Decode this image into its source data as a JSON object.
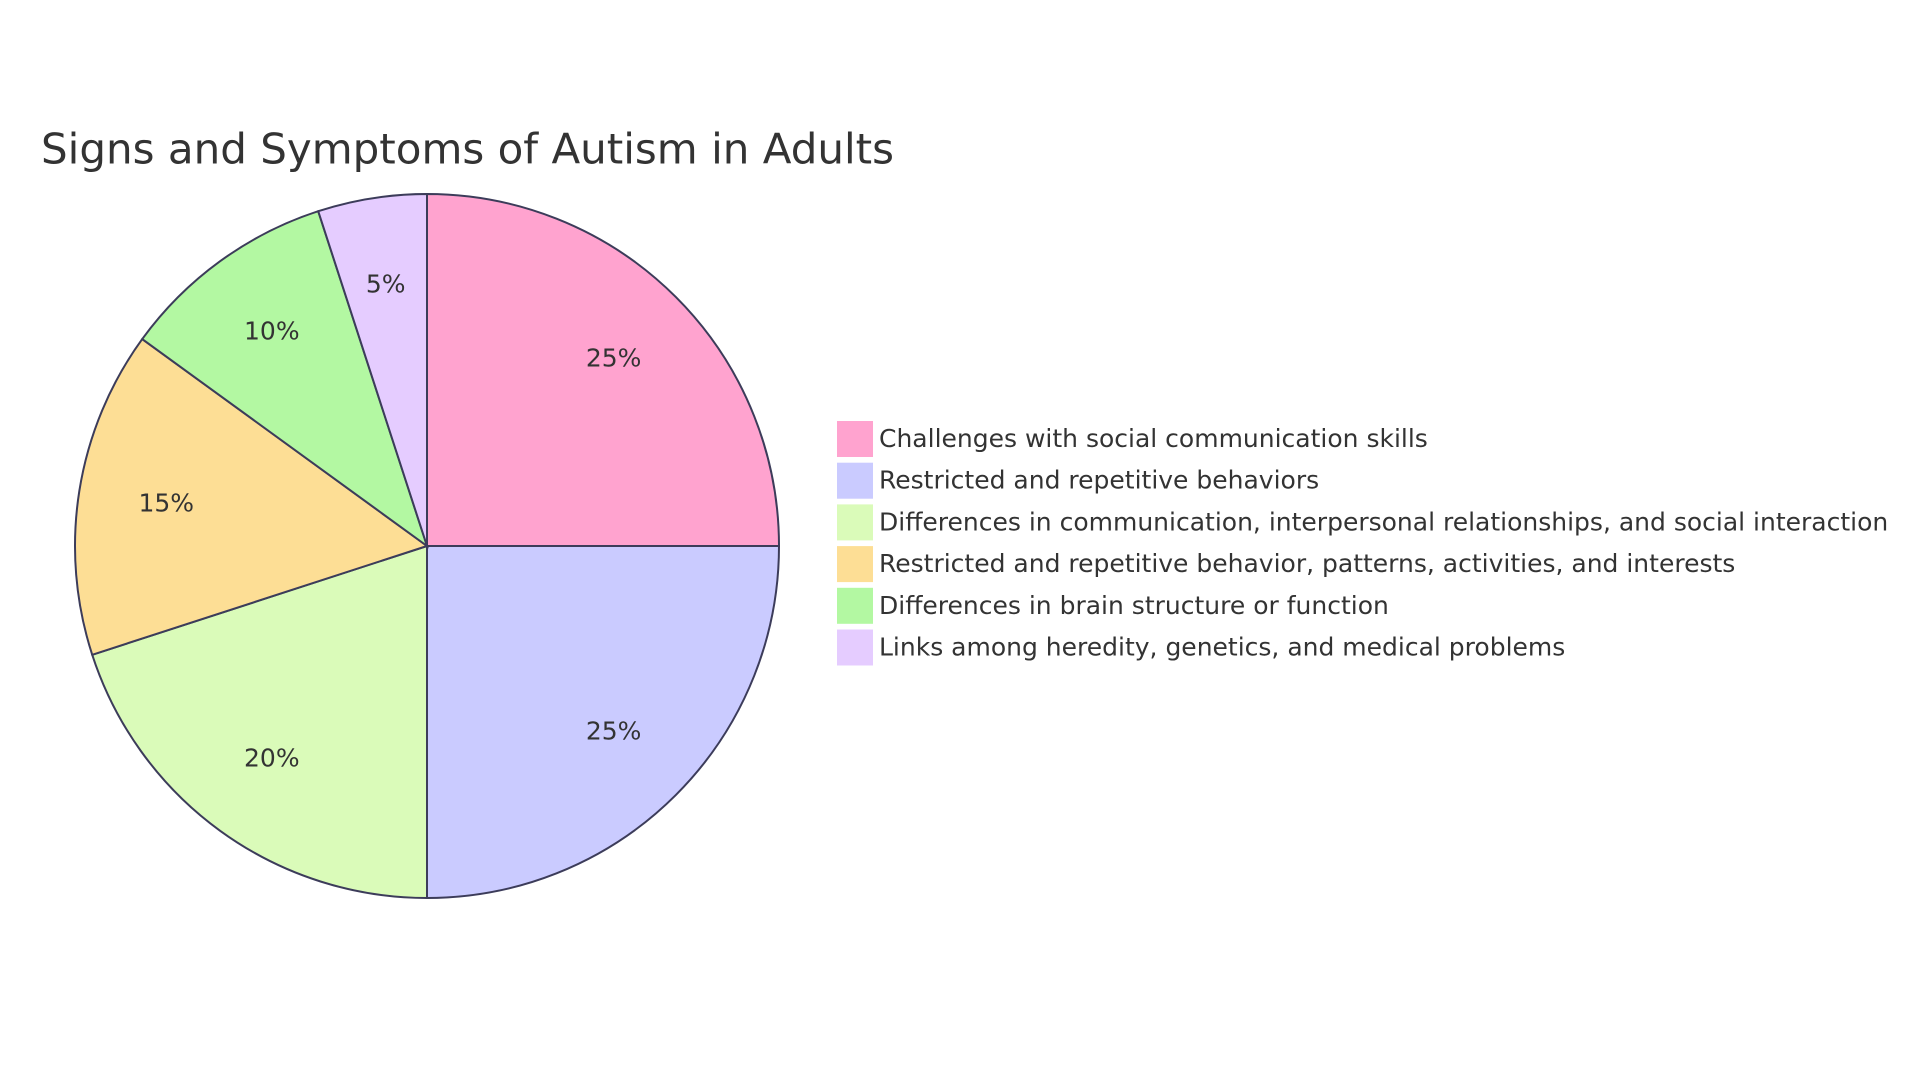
{
  "chart_data": {
    "type": "pie",
    "title": "Signs and Symptoms of Autism in Adults",
    "categories": [
      "Challenges with social communication skills",
      "Restricted and repetitive behaviors",
      "Differences in communication, interpersonal relationships, and social interaction",
      "Restricted and repetitive behavior, patterns, activities, and interests",
      "Differences in brain structure or function",
      "Links among heredity, genetics, and medical problems"
    ],
    "values": [
      25,
      25,
      20,
      15,
      10,
      5
    ],
    "value_labels": [
      "25%",
      "25%",
      "20%",
      "15%",
      "10%",
      "5%"
    ],
    "colors": [
      "#ffa3cf",
      "#cacbff",
      "#dafbb9",
      "#fdde95",
      "#b3f8a2",
      "#e5ccff"
    ],
    "legend": "right"
  }
}
